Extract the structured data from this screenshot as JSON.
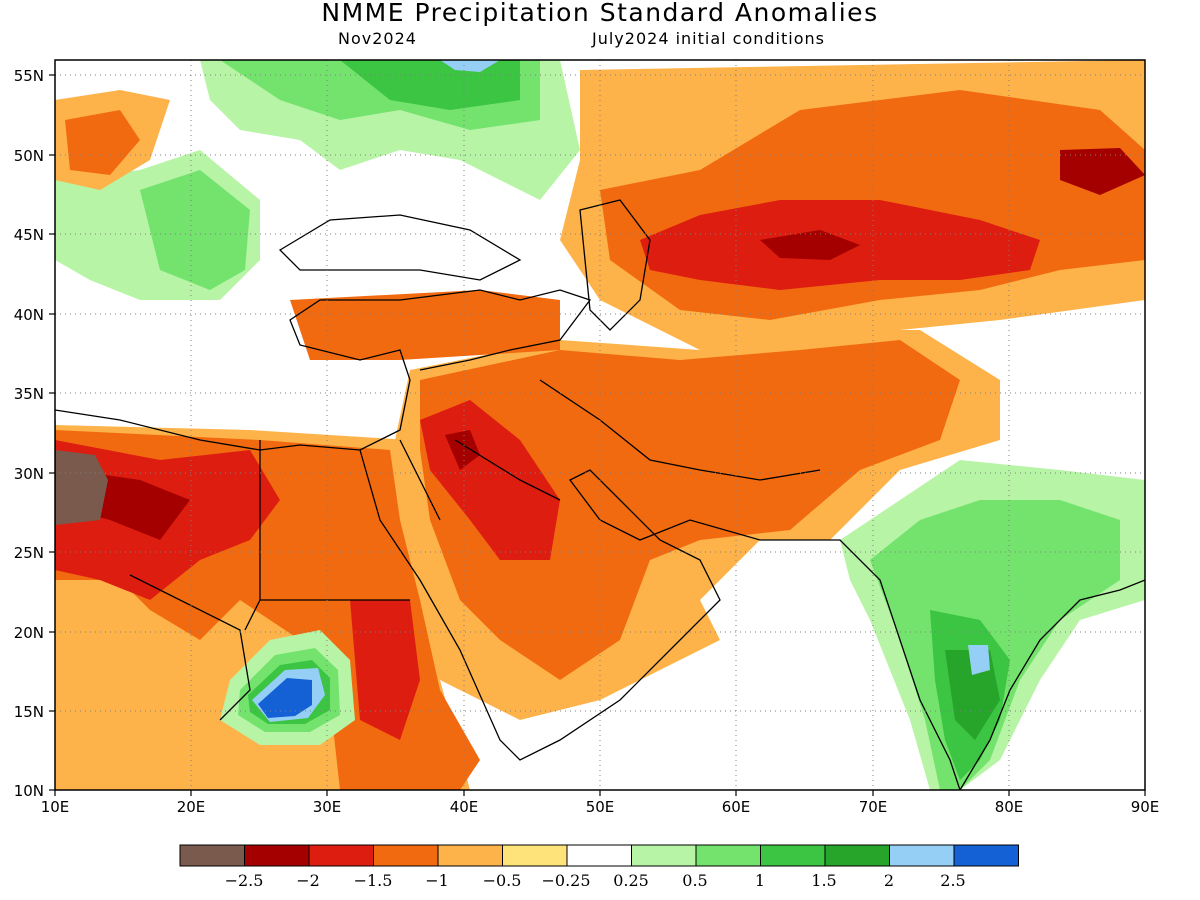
{
  "title": "NMME Precipitation Standard Anomalies",
  "subtitle_left": "Nov2024",
  "subtitle_right": "July2024 initial conditions",
  "x_ticks": [
    "10E",
    "20E",
    "30E",
    "40E",
    "50E",
    "60E",
    "70E",
    "80E",
    "90E"
  ],
  "y_ticks": [
    "55N",
    "50N",
    "45N",
    "40N",
    "35N",
    "30N",
    "25N",
    "20N",
    "15N",
    "10N"
  ],
  "colorbar": {
    "labels": [
      "−2.5",
      "−2",
      "−1.5",
      "−1",
      "−0.5",
      "−0.25",
      "0.25",
      "0.5",
      "1",
      "1.5",
      "2",
      "2.5"
    ],
    "colors": [
      "#7a5a4c",
      "#a50000",
      "#dd1d10",
      "#f26a10",
      "#fdb34a",
      "#fee27a",
      "#ffffff",
      "#b7f4a6",
      "#73e36d",
      "#3cc443",
      "#27a42a",
      "#96cff5",
      "#1461d6"
    ]
  },
  "legend_hint": "brown < -2.5 std dev (dry) to blue > 2.5 std dev (wet)"
}
